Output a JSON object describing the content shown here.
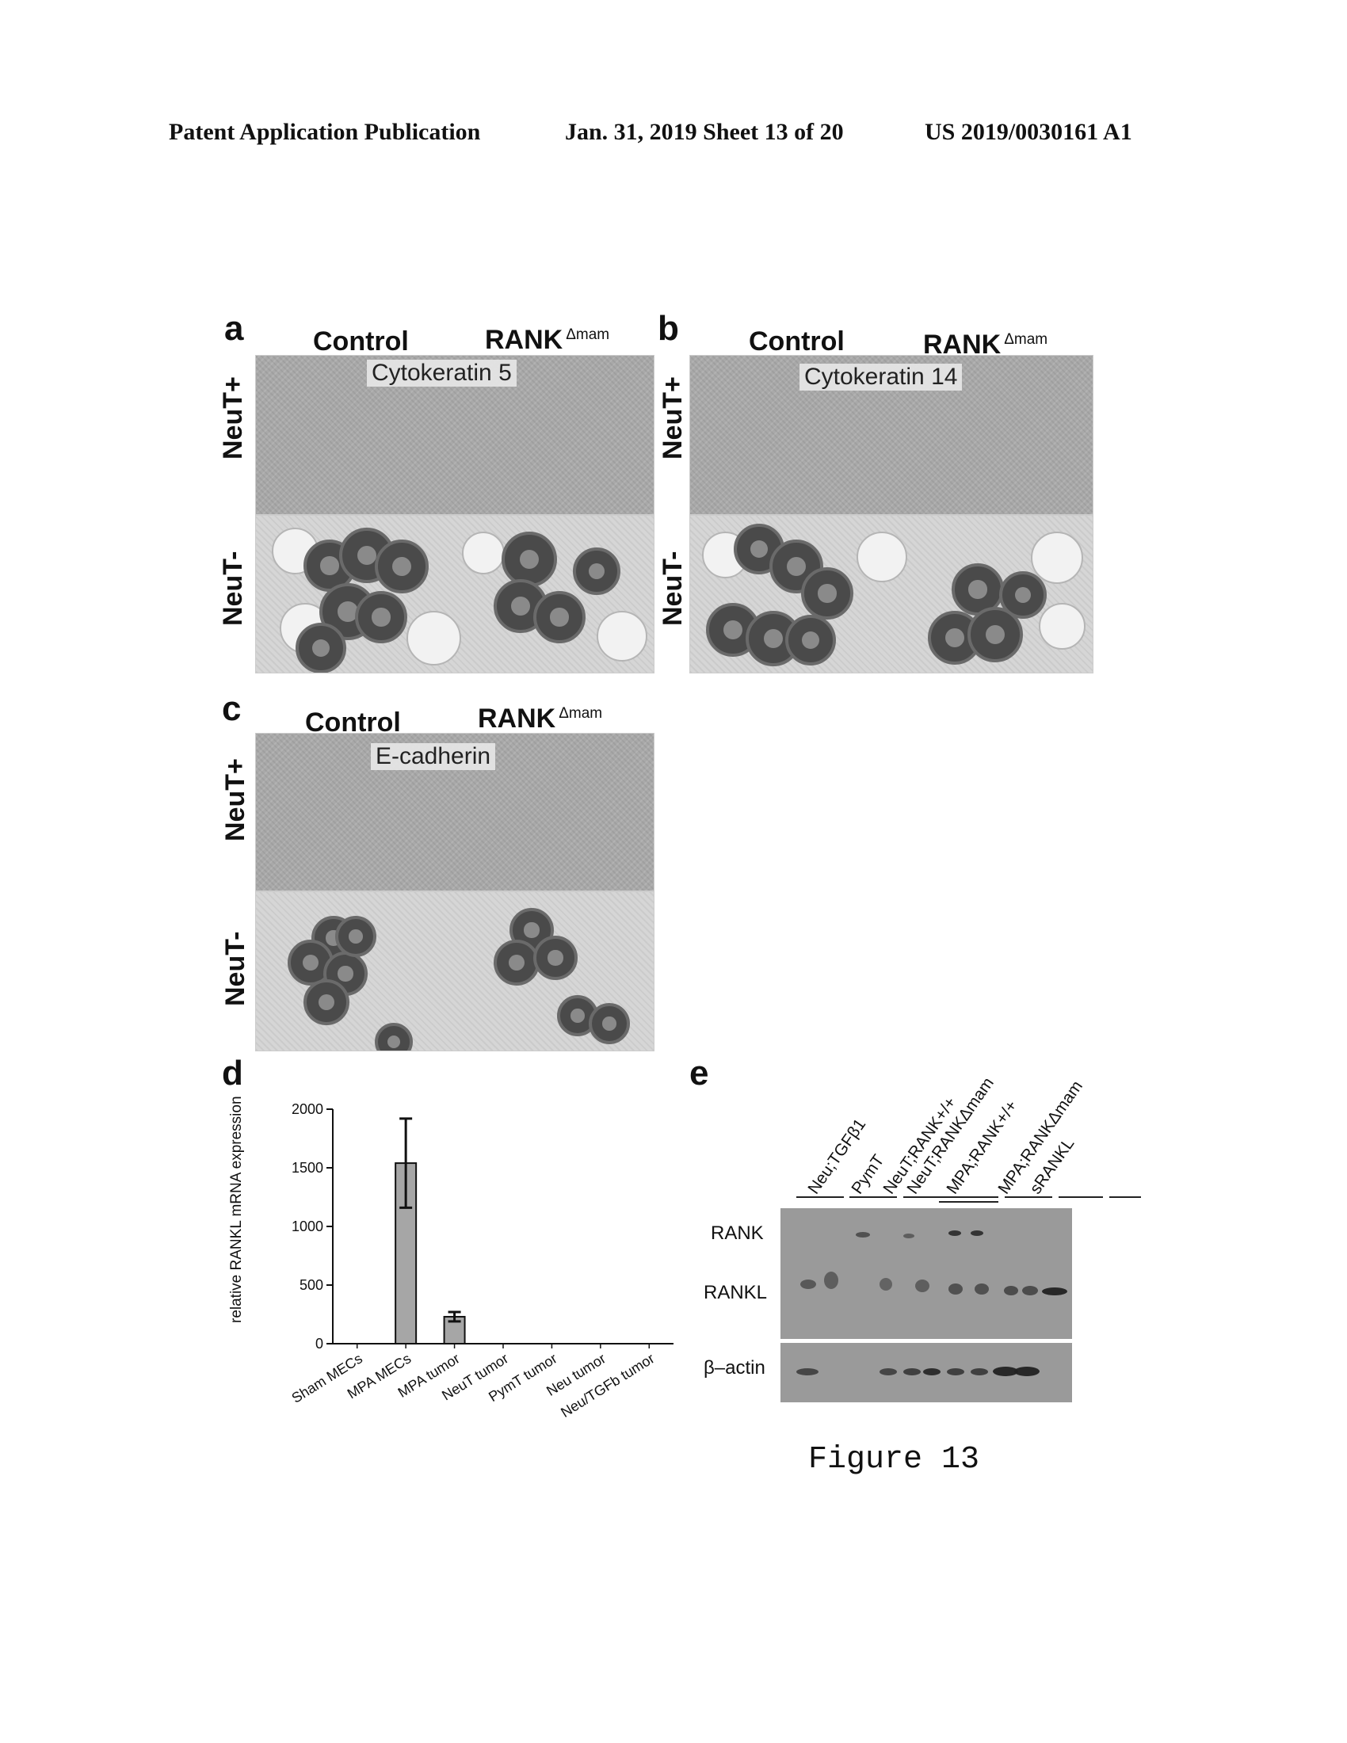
{
  "header": {
    "publication": "Patent Application Publication",
    "date_sheet": "Jan. 31, 2019  Sheet 13 of 20",
    "number": "US 2019/0030161 A1"
  },
  "panels": {
    "a": {
      "letter": "a",
      "col_control": "Control",
      "col_rank": "RANK",
      "col_rank_sup": "Δmam",
      "stain": "Cytokeratin 5",
      "row_top": "NeuT+",
      "row_bottom": "NeuT-"
    },
    "b": {
      "letter": "b",
      "col_control": "Control",
      "col_rank": "RANK",
      "col_rank_sup": "Δmam",
      "stain": "Cytokeratin 14",
      "row_top": "NeuT+",
      "row_bottom": "NeuT-"
    },
    "c": {
      "letter": "c",
      "col_control": "Control",
      "col_rank": "RANK",
      "col_rank_sup": "Δmam",
      "stain": "E-cadherin",
      "row_top": "NeuT+",
      "row_bottom": "NeuT-"
    },
    "d": {
      "letter": "d"
    },
    "e": {
      "letter": "e",
      "lanes": [
        "Neu;TGFβ1",
        "PymT",
        "NeuT;RANK+/+",
        "NeuT;RANKΔmam",
        "MPA;RANK+/+",
        "MPA;RANKΔmam",
        "sRANKL"
      ],
      "rows": [
        "RANK",
        "RANKL",
        "β–actin"
      ]
    }
  },
  "chart_data": {
    "type": "bar",
    "title": "",
    "ylabel": "relative RANKL mRNA expression",
    "xlabel": "",
    "categories": [
      "Sham MECs",
      "MPA MECs",
      "MPA tumor",
      "NeuT tumor",
      "PymT tumor",
      "Neu tumor",
      "Neu/TGFb tumor"
    ],
    "values": [
      0,
      1540,
      230,
      0,
      0,
      0,
      0
    ],
    "errors": [
      0,
      380,
      40,
      0,
      0,
      0,
      0
    ],
    "ylim": [
      0,
      2000
    ],
    "yticks": [
      "0",
      "500",
      "1000",
      "1500",
      "2000"
    ],
    "grid": false
  },
  "figure_label": "Figure 13"
}
